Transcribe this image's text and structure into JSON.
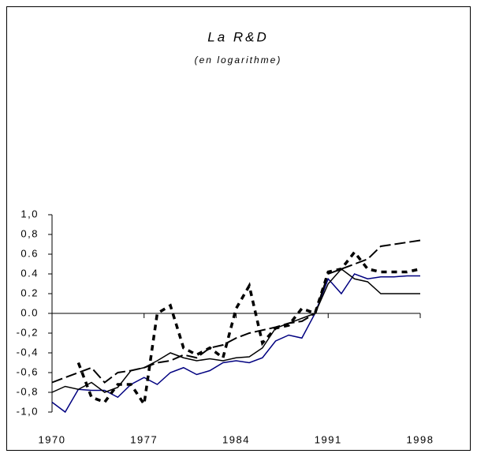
{
  "chart_data": {
    "type": "line",
    "title": "La R&D",
    "subtitle": "(en logarithme)",
    "x": [
      1970,
      1971,
      1972,
      1973,
      1974,
      1975,
      1976,
      1977,
      1978,
      1979,
      1980,
      1981,
      1982,
      1983,
      1984,
      1985,
      1986,
      1987,
      1988,
      1989,
      1990,
      1991,
      1992,
      1993,
      1994,
      1995,
      1996,
      1997,
      1998
    ],
    "xlim": [
      1970,
      1998
    ],
    "xticks": [
      1970,
      1977,
      1984,
      1991,
      1998
    ],
    "ylim": [
      -1,
      1
    ],
    "yticks": [
      {
        "value": -1,
        "label": "-1,0"
      },
      {
        "value": -0.8,
        "label": "-0,8"
      },
      {
        "value": -0.6,
        "label": "-0,6"
      },
      {
        "value": -0.4,
        "label": "-0,4"
      },
      {
        "value": -0.2,
        "label": "-0,2"
      },
      {
        "value": 0,
        "label": "0.0"
      },
      {
        "value": 0.2,
        "label": "0.2"
      },
      {
        "value": 0.4,
        "label": "0.4"
      },
      {
        "value": 0.6,
        "label": "0.6"
      },
      {
        "value": 0.8,
        "label": "0,8"
      },
      {
        "value": 1,
        "label": "1,0"
      }
    ],
    "series": [
      {
        "color": "#000080",
        "dash": "solid",
        "width": 1.5,
        "values": [
          -0.9,
          -1.0,
          -0.77,
          -0.78,
          -0.78,
          -0.85,
          -0.72,
          -0.65,
          -0.72,
          -0.6,
          -0.55,
          -0.62,
          -0.58,
          -0.5,
          -0.48,
          -0.5,
          -0.45,
          -0.28,
          -0.22,
          -0.25,
          0.0,
          0.35,
          0.2,
          0.4,
          0.35,
          0.37,
          0.37,
          0.38,
          0.38
        ]
      },
      {
        "color": "#000000",
        "dash": "solid",
        "width": 1.5,
        "values": [
          -0.8,
          -0.74,
          -0.77,
          -0.7,
          -0.8,
          -0.75,
          -0.58,
          -0.55,
          -0.48,
          -0.4,
          -0.45,
          -0.48,
          -0.46,
          -0.48,
          -0.45,
          -0.44,
          -0.35,
          -0.15,
          -0.1,
          -0.05,
          0.0,
          0.3,
          0.45,
          0.35,
          0.32,
          0.2,
          0.2,
          0.2,
          0.2
        ]
      },
      {
        "color": "#000000",
        "dash": "longdash",
        "width": 2,
        "values": [
          -0.7,
          -0.65,
          -0.6,
          -0.55,
          -0.7,
          -0.6,
          -0.58,
          -0.55,
          -0.5,
          -0.48,
          -0.42,
          -0.45,
          -0.35,
          -0.32,
          -0.25,
          -0.2,
          -0.17,
          -0.14,
          -0.1,
          -0.08,
          0.0,
          0.4,
          0.45,
          0.5,
          0.55,
          0.68,
          0.7,
          0.72,
          0.74
        ]
      },
      {
        "color": "#000000",
        "dash": "shortdash",
        "width": 3.5,
        "values": [
          null,
          null,
          -0.5,
          -0.85,
          -0.9,
          -0.72,
          -0.72,
          -0.92,
          0.0,
          0.08,
          -0.35,
          -0.42,
          -0.35,
          -0.45,
          0.05,
          0.28,
          -0.3,
          -0.15,
          -0.12,
          0.05,
          0.0,
          0.42,
          0.45,
          0.62,
          0.45,
          0.42,
          0.42,
          0.42,
          0.45
        ]
      }
    ]
  }
}
